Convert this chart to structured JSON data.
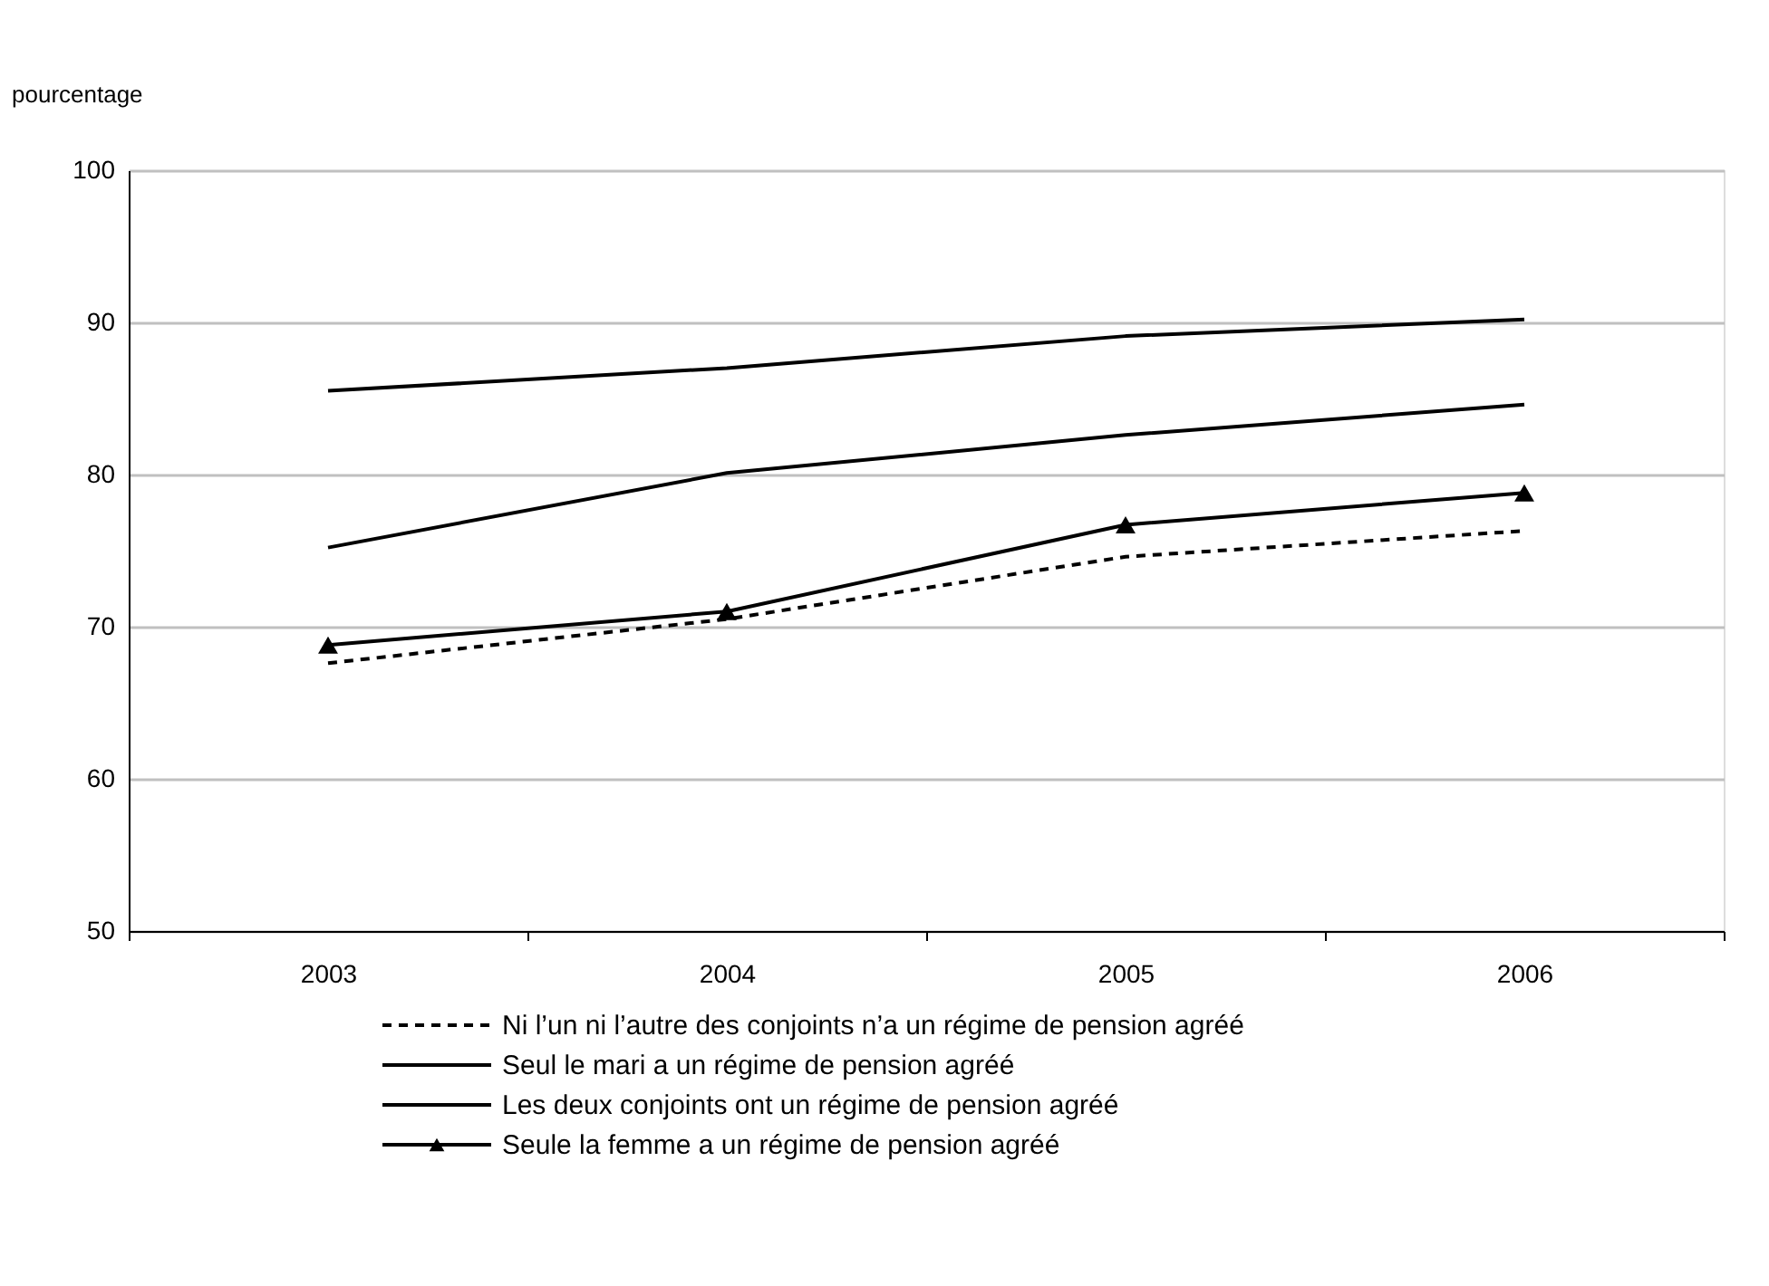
{
  "chart_data": {
    "type": "line",
    "ylabel": "pourcentage",
    "categories": [
      "2003",
      "2004",
      "2005",
      "2006"
    ],
    "ylim": [
      50,
      100
    ],
    "yticks": [
      50,
      60,
      70,
      80,
      90,
      100
    ],
    "grid": "y",
    "legend": "bottom",
    "series": [
      {
        "name": "Ni l’un ni l’autre des conjoints n’a un régime de pension agréé",
        "color": "#000000",
        "line_style": "dashed",
        "marker": "none",
        "values": [
          67.6,
          70.5,
          74.6,
          76.3
        ]
      },
      {
        "name": "Seul le mari a un régime de pension agréé",
        "color": "#000000",
        "line_style": "solid",
        "marker": "none",
        "values": [
          85.5,
          87.0,
          89.1,
          90.2
        ]
      },
      {
        "name": "Les deux conjoints ont un régime de pension agréé",
        "color": "#000000",
        "line_style": "solid",
        "marker": "none",
        "values": [
          75.2,
          80.1,
          82.6,
          84.6
        ]
      },
      {
        "name": "Seule la femme a un régime de pension agréé",
        "color": "#000000",
        "line_style": "solid",
        "marker": "triangle",
        "values": [
          68.8,
          71.0,
          76.7,
          78.8
        ]
      }
    ]
  }
}
